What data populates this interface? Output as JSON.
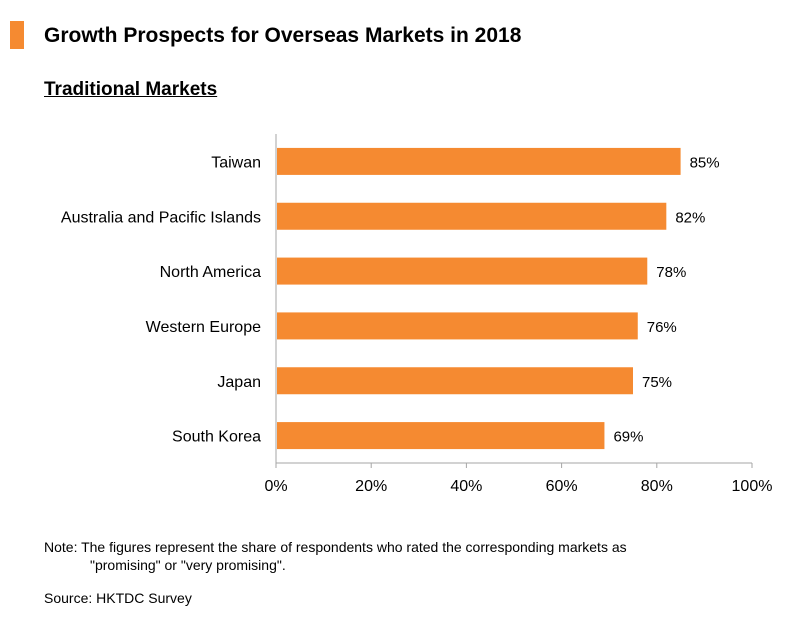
{
  "colors": {
    "accent": "#f58a31",
    "axis": "#a6a6a6",
    "text": "#000000"
  },
  "header": {
    "title": "Growth Prospects for Overseas Markets in 2018",
    "subtitle": "Traditional Markets"
  },
  "chart_data": {
    "type": "bar",
    "orientation": "horizontal",
    "title": "Traditional Markets",
    "categories": [
      "Taiwan",
      "Australia and Pacific Islands",
      "North America",
      "Western Europe",
      "Japan",
      "South Korea"
    ],
    "values": [
      85,
      82,
      78,
      76,
      75,
      69
    ],
    "value_labels": [
      "85%",
      "82%",
      "78%",
      "76%",
      "75%",
      "69%"
    ],
    "xlim": [
      0,
      100
    ],
    "xticks": [
      0,
      20,
      40,
      60,
      80,
      100
    ],
    "xtick_labels": [
      "0%",
      "20%",
      "40%",
      "60%",
      "80%",
      "100%"
    ],
    "xlabel": "",
    "ylabel": "",
    "grid": false,
    "legend": "none"
  },
  "footer": {
    "note_line1": "Note: The figures represent the share of respondents who rated the corresponding markets as",
    "note_line2": "\"promising\" or \"very promising\".",
    "source": "Source: HKTDC Survey"
  }
}
